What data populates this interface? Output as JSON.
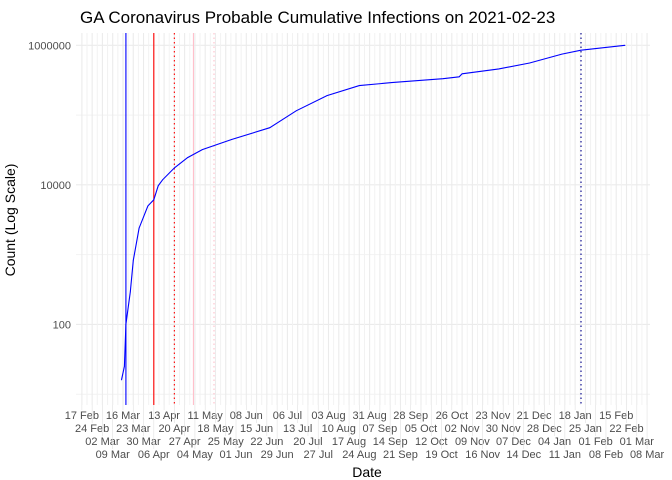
{
  "chart_data": {
    "type": "line",
    "title": "GA Coronavirus Probable Cumulative Infections on 2021-02-23",
    "xlabel": "Date",
    "ylabel": "Count (Log Scale)",
    "y_scale": "log10",
    "ylim": [
      7,
      1500000
    ],
    "xlim": [
      "2020-02-13",
      "2021-03-10"
    ],
    "y_ticks": [
      {
        "value": 100,
        "label": "100"
      },
      {
        "value": 10000,
        "label": "10000"
      },
      {
        "value": 1000000,
        "label": "1000000"
      }
    ],
    "x_ticks": [
      "17 Feb",
      "24 Feb",
      "02 Mar",
      "09 Mar",
      "16 Mar",
      "23 Mar",
      "30 Mar",
      "06 Apr",
      "13 Apr",
      "20 Apr",
      "27 Apr",
      "04 May",
      "11 May",
      "18 May",
      "25 May",
      "01 Jun",
      "08 Jun",
      "15 Jun",
      "22 Jun",
      "29 Jun",
      "06 Jul",
      "13 Jul",
      "20 Jul",
      "27 Jul",
      "03 Aug",
      "10 Aug",
      "17 Aug",
      "24 Aug",
      "31 Aug",
      "07 Sep",
      "14 Sep",
      "21 Sep",
      "28 Sep",
      "05 Oct",
      "12 Oct",
      "19 Oct",
      "26 Oct",
      "02 Nov",
      "09 Nov",
      "16 Nov",
      "23 Nov",
      "30 Nov",
      "07 Dec",
      "14 Dec",
      "21 Dec",
      "28 Dec",
      "04 Jan",
      "11 Jan",
      "18 Jan",
      "25 Jan",
      "01 Feb",
      "08 Feb",
      "15 Feb",
      "22 Feb",
      "01 Mar",
      "08 Mar"
    ],
    "x_tick_start": "2020-02-17",
    "x_tick_step_days": 7,
    "grid": true,
    "series": [
      {
        "name": "Probable cumulative infections",
        "color": "#0000FF",
        "points": [
          [
            "2020-03-15",
            16
          ],
          [
            "2020-03-17",
            25
          ],
          [
            "2020-03-18",
            100
          ],
          [
            "2020-03-21",
            292
          ],
          [
            "2020-03-23",
            830
          ],
          [
            "2020-03-27",
            2400
          ],
          [
            "2020-04-02",
            5000
          ],
          [
            "2020-04-06",
            6100
          ],
          [
            "2020-04-09",
            9700
          ],
          [
            "2020-04-12",
            11800
          ],
          [
            "2020-04-20",
            17500
          ],
          [
            "2020-04-29",
            24600
          ],
          [
            "2020-05-09",
            32000
          ],
          [
            "2020-05-29",
            44700
          ],
          [
            "2020-06-24",
            66000
          ],
          [
            "2020-07-12",
            115000
          ],
          [
            "2020-08-02",
            190000
          ],
          [
            "2020-08-24",
            264000
          ],
          [
            "2020-09-15",
            292000
          ],
          [
            "2020-10-20",
            332000
          ],
          [
            "2020-10-31",
            354000
          ],
          [
            "2020-11-02",
            390000
          ],
          [
            "2020-11-27",
            459000
          ],
          [
            "2020-12-18",
            558000
          ],
          [
            "2021-01-09",
            747000
          ],
          [
            "2021-01-22",
            850000
          ],
          [
            "2021-02-21",
            1000000
          ]
        ]
      }
    ],
    "reference_lines": [
      {
        "date": "2020-03-18",
        "color": "#0000FF",
        "style": "solid"
      },
      {
        "date": "2020-04-06",
        "color": "#FF0000",
        "style": "solid"
      },
      {
        "date": "2020-04-20",
        "color": "#FF0000",
        "style": "dotted"
      },
      {
        "date": "2020-05-03",
        "color": "#FFC0CB",
        "style": "solid"
      },
      {
        "date": "2020-05-17",
        "color": "#FFC0CB",
        "style": "dotted"
      },
      {
        "date": "2021-01-22",
        "color": "#00008B",
        "style": "dotted"
      }
    ]
  }
}
